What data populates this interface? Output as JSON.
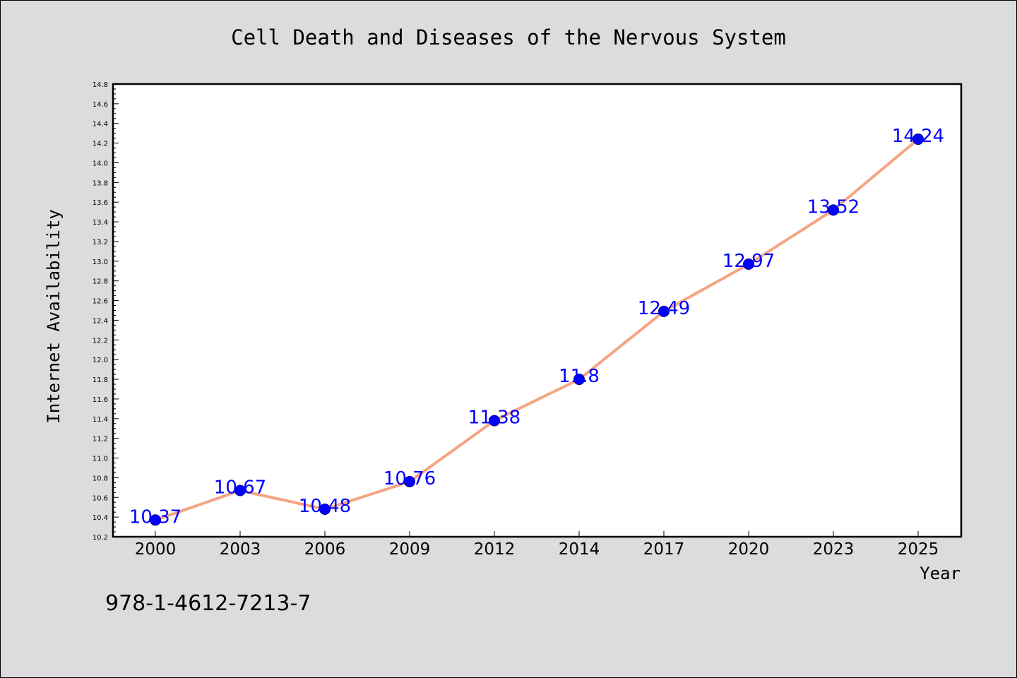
{
  "chart_data": {
    "type": "line",
    "title": "Cell Death and Diseases of the Nervous System",
    "xlabel": "Year",
    "ylabel": "Internet Availability",
    "categories": [
      "2000",
      "2003",
      "2006",
      "2009",
      "2012",
      "2014",
      "2017",
      "2020",
      "2023",
      "2025"
    ],
    "series": [
      {
        "values": [
          10.37,
          10.67,
          10.48,
          10.76,
          11.38,
          11.8,
          12.49,
          12.97,
          13.52,
          14.24
        ],
        "labels": [
          "10.37",
          "10.67",
          "10.48",
          "10.76",
          "11.38",
          "11.8",
          "12.49",
          "12.97",
          "13.52",
          "14.24"
        ]
      }
    ],
    "ylim": [
      10.2,
      14.8
    ],
    "yticks": [
      "10.2",
      "10.4",
      "10.6",
      "10.8",
      "11.0",
      "11.2",
      "11.4",
      "11.6",
      "11.8",
      "12.0",
      "12.2",
      "12.4",
      "12.6",
      "12.8",
      "13.0",
      "13.2",
      "13.4",
      "13.6",
      "13.8",
      "14.0",
      "14.2",
      "14.4",
      "14.6",
      "14.8"
    ],
    "grid": false,
    "legend": "none",
    "colors": {
      "figure_bg": "#dcdcdc",
      "plot_bg": "#ffffff",
      "line": "#f4a582",
      "marker": "#0000ff",
      "label": "#0000ff",
      "text": "#000000"
    }
  },
  "footer": {
    "isbn": "978-1-4612-7213-7"
  }
}
